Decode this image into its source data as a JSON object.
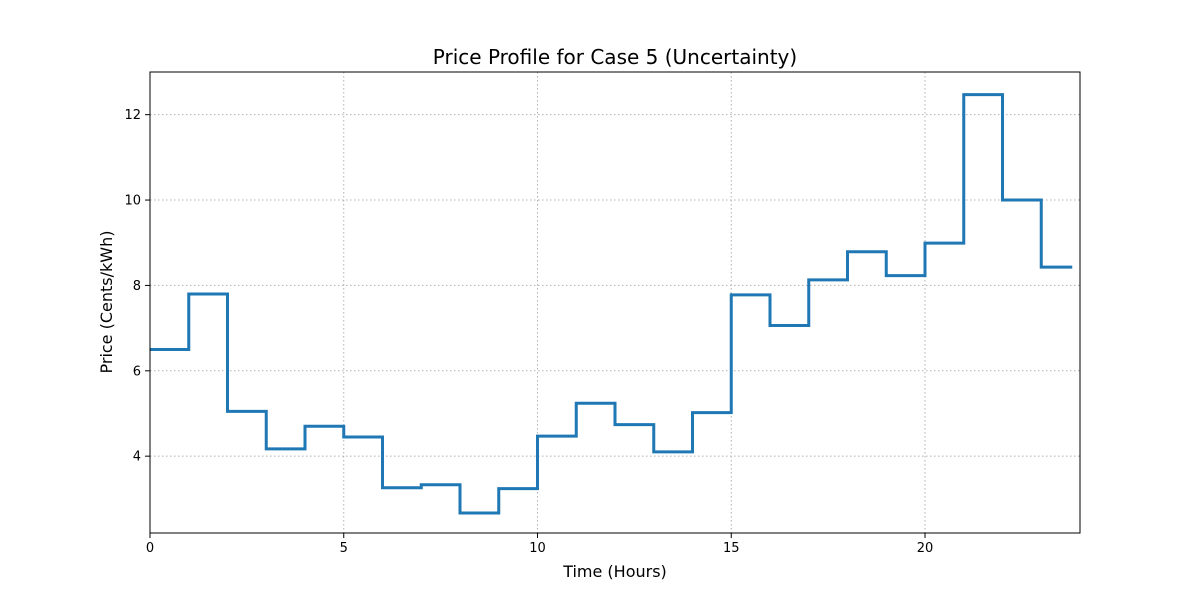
{
  "chart_data": {
    "type": "line",
    "style": "step-post",
    "title": "Price Profile for Case 5 (Uncertainty)",
    "xlabel": "Time (Hours)",
    "ylabel": "Price (Cents/kWh)",
    "xlim": [
      0,
      24
    ],
    "ylim": [
      2.2,
      13.0
    ],
    "xticks": [
      0,
      5,
      10,
      15,
      20
    ],
    "yticks": [
      4,
      6,
      8,
      10,
      12
    ],
    "grid": true,
    "legend": "none",
    "series": [
      {
        "color": "#1f77b4",
        "x": [
          0,
          1,
          2,
          3,
          4,
          5,
          6,
          7,
          8,
          9,
          10,
          11,
          12,
          13,
          14,
          15,
          16,
          17,
          18,
          19,
          20,
          21,
          22,
          23,
          23.8
        ],
        "y": [
          6.5,
          7.8,
          5.05,
          4.17,
          4.7,
          4.45,
          3.26,
          3.33,
          2.67,
          3.24,
          4.47,
          5.24,
          4.74,
          4.1,
          5.02,
          7.78,
          7.06,
          8.13,
          8.79,
          8.23,
          8.99,
          12.47,
          10.0,
          8.43,
          8.43
        ]
      }
    ]
  }
}
